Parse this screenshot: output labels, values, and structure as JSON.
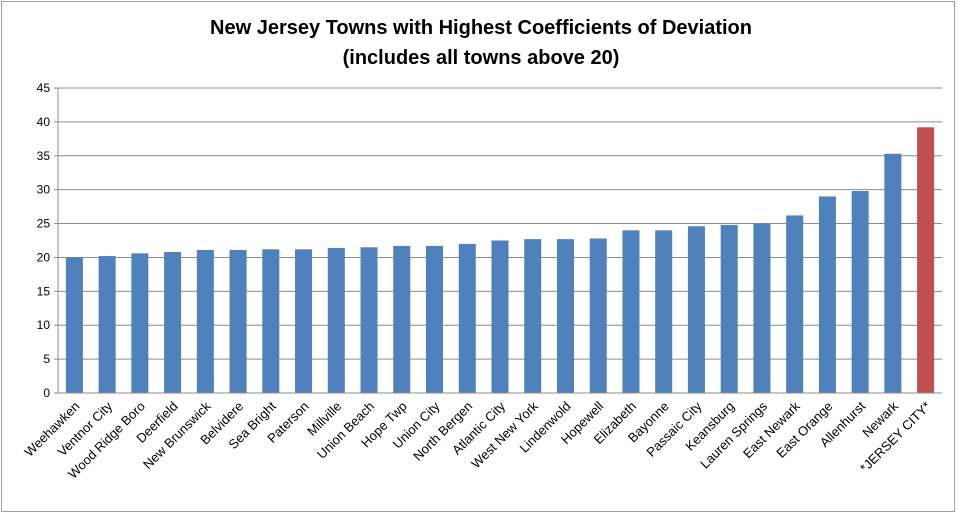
{
  "chart_data": {
    "type": "bar",
    "title_lines": [
      "New Jersey Towns with Highest Coefficients of Deviation",
      "(includes all towns above 20)"
    ],
    "xlabel": "",
    "ylabel": "",
    "ylim": [
      0,
      45
    ],
    "yticks": [
      0,
      5,
      10,
      15,
      20,
      25,
      30,
      35,
      40,
      45
    ],
    "grid": true,
    "legend": "none",
    "categories": [
      "Weehawken",
      "Ventnor City",
      "Wood Ridge Boro",
      "Deerfield",
      "New Brunswick",
      "Belvidere",
      "Sea Bright",
      "Paterson",
      "Millville",
      "Union Beach",
      "Hope Twp",
      "Union City",
      "North Bergen",
      "Atlantic City",
      "West New York",
      "Lindenwold",
      "Hopewell",
      "Elizabeth",
      "Bayonne",
      "Passaic City",
      "Keansburg",
      "Lauren Springs",
      "East Newark",
      "East Orange",
      "Allenhurst",
      "Newark",
      "*JERSEY CITY*"
    ],
    "values": [
      20.0,
      20.2,
      20.6,
      20.8,
      21.1,
      21.1,
      21.2,
      21.2,
      21.4,
      21.5,
      21.7,
      21.7,
      22.0,
      22.5,
      22.7,
      22.7,
      22.8,
      24.0,
      24.0,
      24.6,
      24.8,
      25.0,
      26.2,
      29.0,
      29.8,
      35.3,
      39.2
    ],
    "colors": {
      "default": "#4f81bd",
      "highlight": "#c0504d"
    },
    "highlight_index": 26
  }
}
